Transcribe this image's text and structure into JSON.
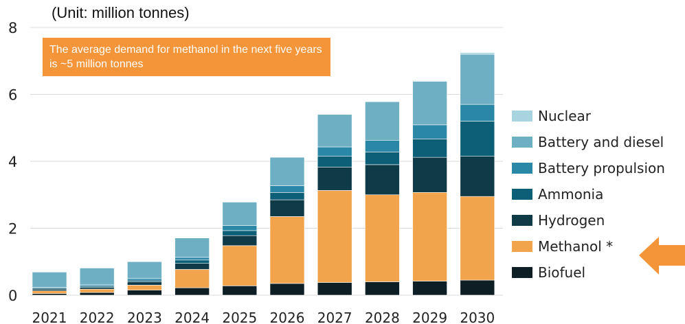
{
  "unit_label": "(Unit: million tonnes)",
  "callout": "The average demand for methanol in the next five years is ~5 million tonnes",
  "chart_data": {
    "type": "bar",
    "stacked": true,
    "categories": [
      "2021",
      "2022",
      "2023",
      "2024",
      "2025",
      "2026",
      "2027",
      "2028",
      "2029",
      "2030"
    ],
    "ylim": [
      0,
      8
    ],
    "yticks": [
      0,
      2,
      4,
      6,
      8
    ],
    "grid": true,
    "legend_position": "right",
    "series": [
      {
        "name": "Biofuel",
        "color": "#0d1f24",
        "values": [
          0.05,
          0.08,
          0.15,
          0.22,
          0.28,
          0.35,
          0.38,
          0.4,
          0.42,
          0.45
        ]
      },
      {
        "name": "Methanol *",
        "color": "#f2a44c",
        "values": [
          0.08,
          0.1,
          0.15,
          0.55,
          1.2,
          2.0,
          2.75,
          2.6,
          2.65,
          2.5
        ]
      },
      {
        "name": "Hydrogen",
        "color": "#0f3a47",
        "values": [
          0.05,
          0.05,
          0.1,
          0.18,
          0.3,
          0.5,
          0.7,
          0.9,
          1.05,
          1.2
        ]
      },
      {
        "name": "Ammonia",
        "color": "#0d5f78",
        "values": [
          0.03,
          0.04,
          0.05,
          0.1,
          0.15,
          0.22,
          0.32,
          0.38,
          0.55,
          1.05
        ]
      },
      {
        "name": "Battery propulsion",
        "color": "#2a88a6",
        "values": [
          0.03,
          0.04,
          0.05,
          0.08,
          0.15,
          0.2,
          0.28,
          0.35,
          0.42,
          0.5
        ]
      },
      {
        "name": "Battery and diesel",
        "color": "#6fafc3",
        "values": [
          0.45,
          0.5,
          0.5,
          0.58,
          0.7,
          0.85,
          0.97,
          1.15,
          1.3,
          1.5
        ]
      },
      {
        "name": "Nuclear",
        "color": "#a8d4e0",
        "values": [
          0,
          0,
          0,
          0,
          0,
          0,
          0,
          0,
          0.02,
          0.05
        ]
      }
    ],
    "legend_order": [
      "Nuclear",
      "Battery and diesel",
      "Battery propulsion",
      "Ammonia",
      "Hydrogen",
      "Methanol *",
      "Biofuel"
    ],
    "highlight_color": "#f5953a"
  }
}
